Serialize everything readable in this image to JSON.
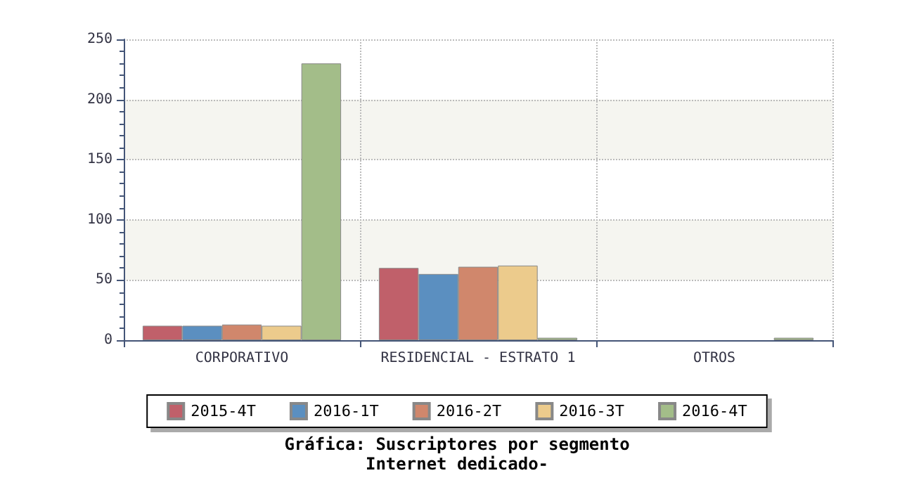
{
  "chart_data": {
    "type": "bar",
    "title": "Gráfica: Suscriptores por segmento\nInternet dedicado-",
    "categories": [
      "CORPORATIVO",
      "RESIDENCIAL - ESTRATO 1",
      "OTROS"
    ],
    "series": [
      {
        "name": "2015-4T",
        "color": "#c0606a",
        "values": [
          12,
          60,
          0
        ]
      },
      {
        "name": "2016-1T",
        "color": "#5b8fc0",
        "values": [
          12,
          55,
          0
        ]
      },
      {
        "name": "2016-2T",
        "color": "#d0876c",
        "values": [
          13,
          61,
          0
        ]
      },
      {
        "name": "2016-3T",
        "color": "#eccb8c",
        "values": [
          12,
          62,
          0
        ]
      },
      {
        "name": "2016-4T",
        "color": "#a3bd89",
        "values": [
          230,
          2,
          2
        ]
      }
    ],
    "ylim": [
      0,
      250
    ],
    "yticks": [
      0,
      50,
      100,
      150,
      200,
      250
    ],
    "grid": true,
    "legend": "bottom"
  }
}
